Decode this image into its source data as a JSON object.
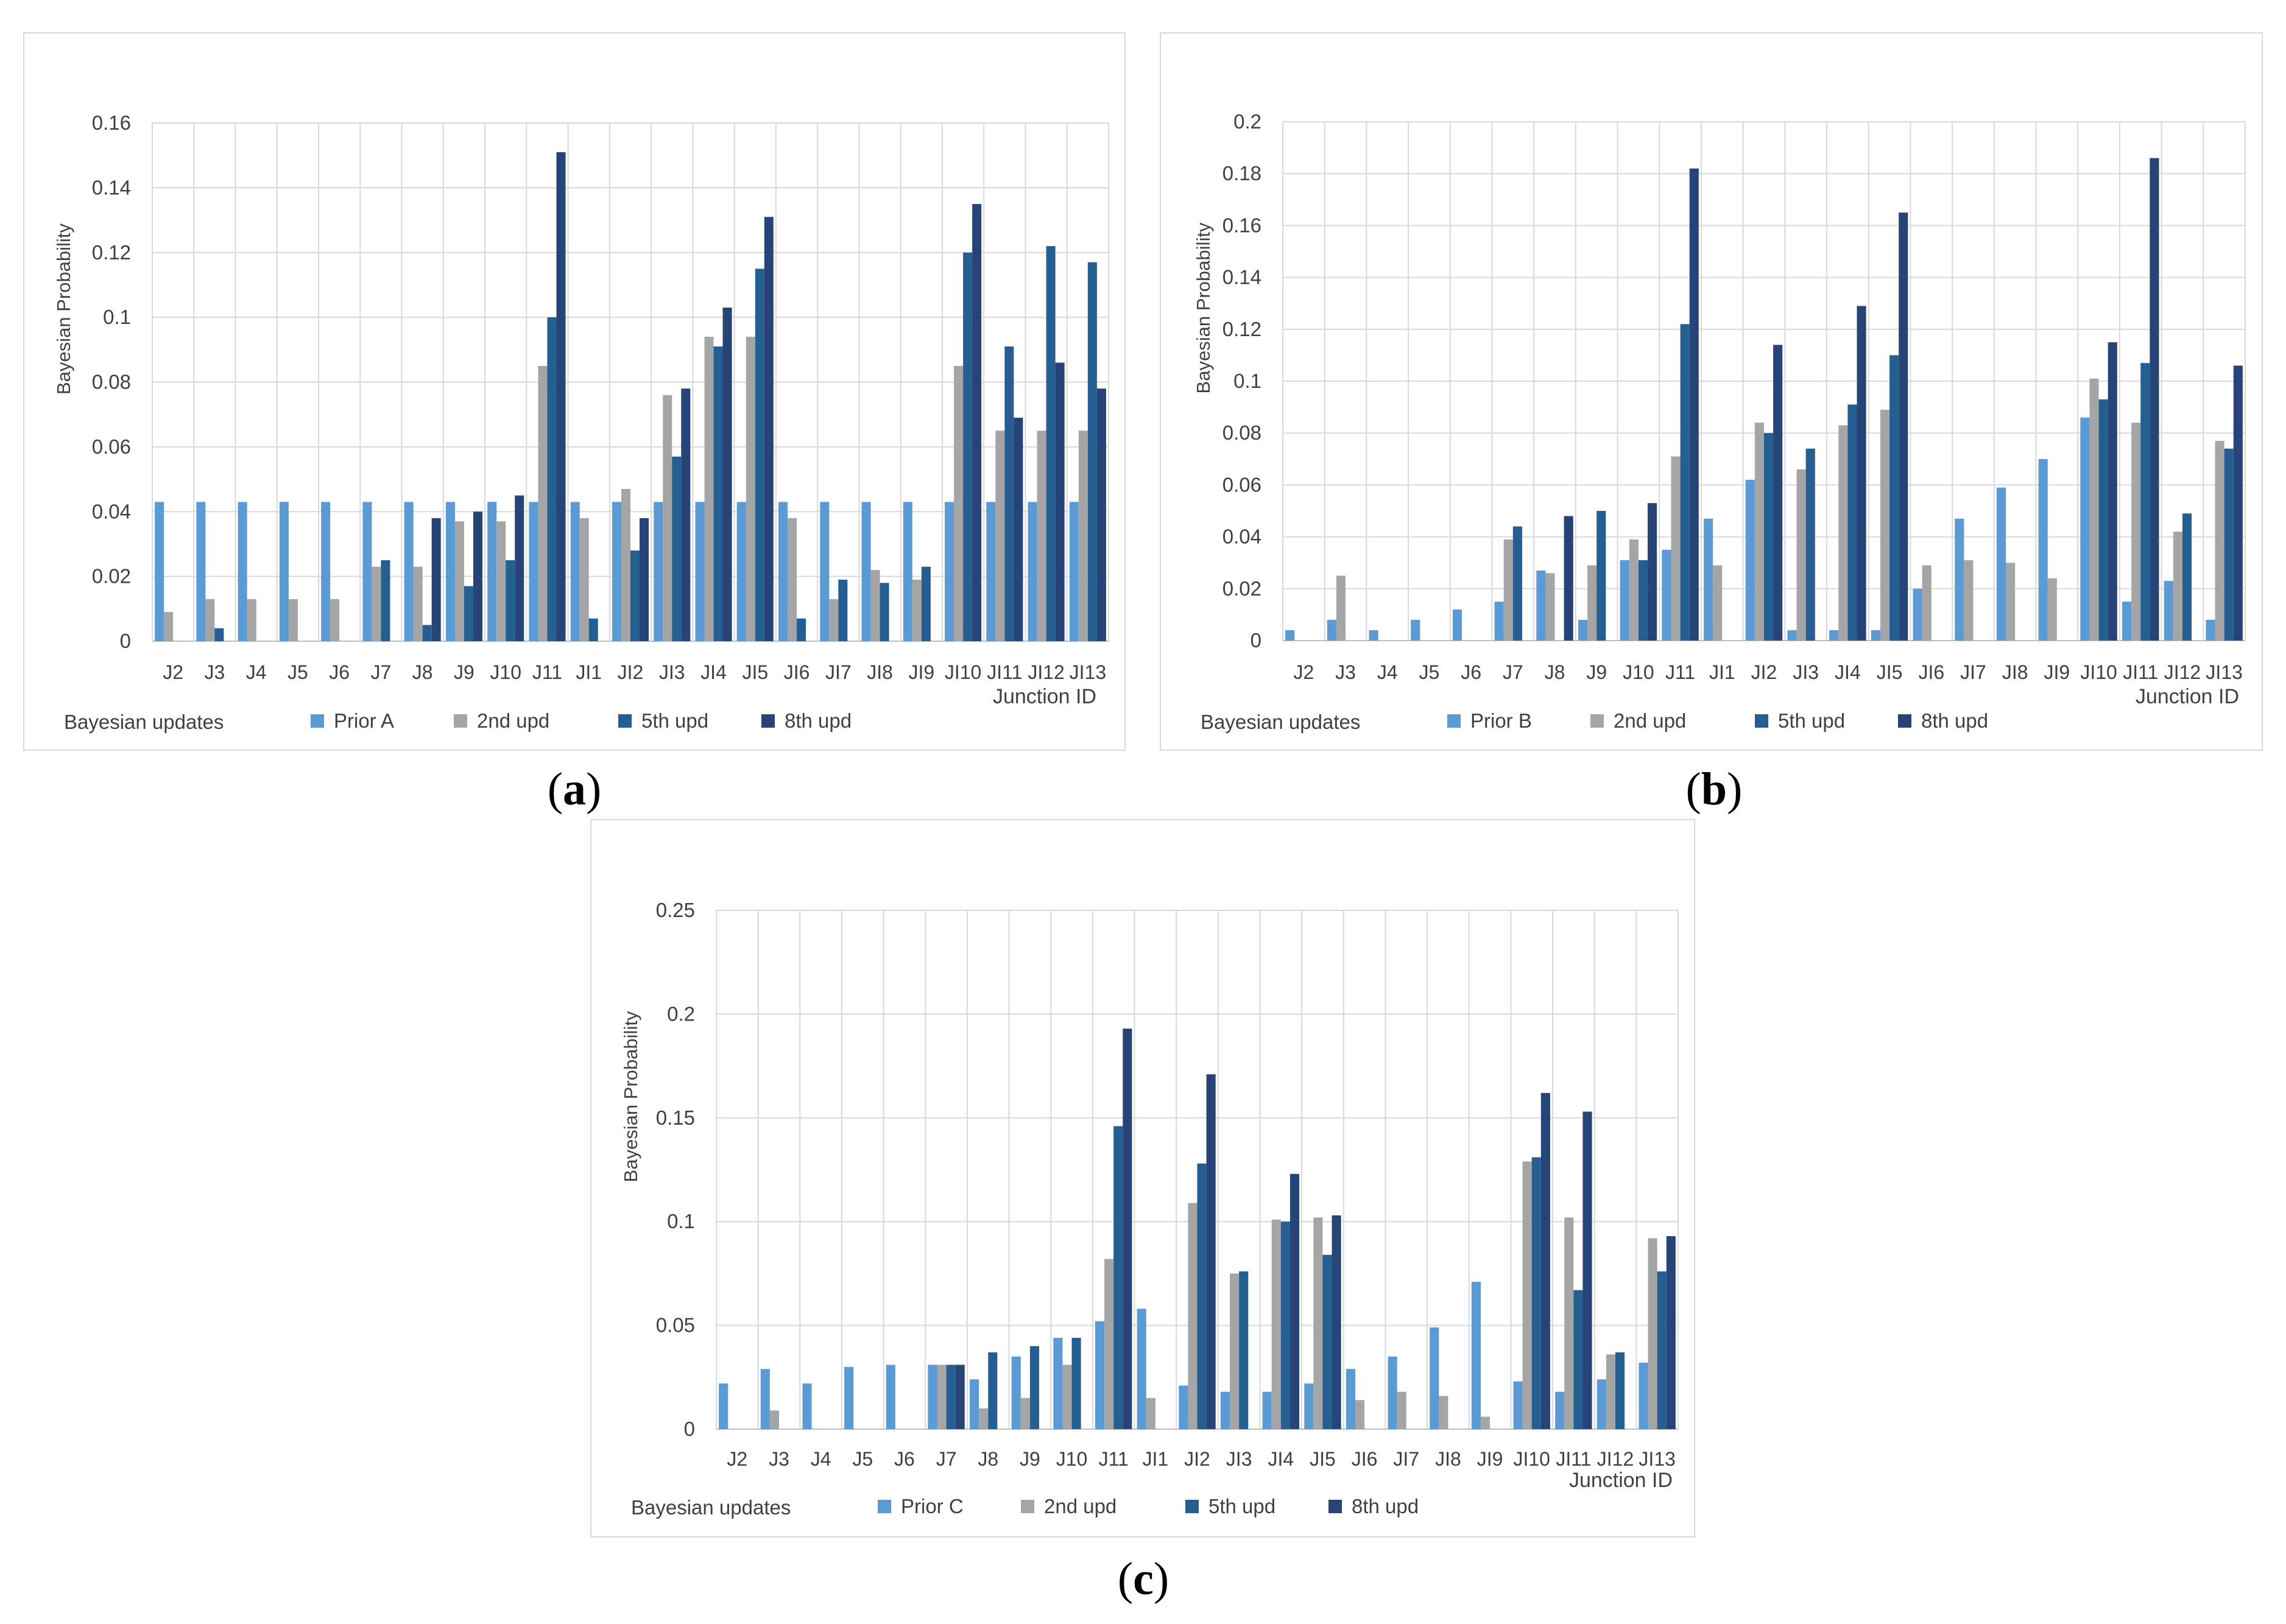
{
  "colors": {
    "prior": "#5b9bd5",
    "upd2": "#a5a5a5",
    "upd5": "#255e91",
    "upd8": "#264478",
    "grid": "#d9d9d9",
    "text": "#404040"
  },
  "chart_data": [
    {
      "id": "a",
      "type": "bar",
      "caption": "a",
      "ylabel": "Bayesian Probability",
      "xlabel": "Junction ID",
      "legend_title": "Bayesian updates",
      "ylim": [
        0,
        0.16
      ],
      "yticks": [
        0,
        0.02,
        0.04,
        0.06,
        0.08,
        0.1,
        0.12,
        0.14,
        0.16
      ],
      "ytick_labels": [
        "0",
        "0.02",
        "0.04",
        "0.06",
        "0.08",
        "0.1",
        "0.12",
        "0.14",
        "0.16"
      ],
      "categories": [
        "J2",
        "J3",
        "J4",
        "J5",
        "J6",
        "J7",
        "J8",
        "J9",
        "J10",
        "J11",
        "JI1",
        "JI2",
        "JI3",
        "JI4",
        "JI5",
        "JI6",
        "JI7",
        "JI8",
        "JI9",
        "JI10",
        "JI11",
        "JI12",
        "JI13"
      ],
      "series": [
        {
          "name": "Prior A",
          "values": [
            0.043,
            0.043,
            0.043,
            0.043,
            0.043,
            0.043,
            0.043,
            0.043,
            0.043,
            0.043,
            0.043,
            0.043,
            0.043,
            0.043,
            0.043,
            0.043,
            0.043,
            0.043,
            0.043,
            0.043,
            0.043,
            0.043,
            0.043
          ]
        },
        {
          "name": "2nd upd",
          "values": [
            0.009,
            0.013,
            0.013,
            0.013,
            0.013,
            0.023,
            0.023,
            0.037,
            0.037,
            0.085,
            0.038,
            0.047,
            0.076,
            0.094,
            0.094,
            0.038,
            0.013,
            0.022,
            0.019,
            0.085,
            0.065,
            0.065,
            0.065
          ]
        },
        {
          "name": "5th upd",
          "values": [
            0,
            0.004,
            0,
            0,
            0,
            0.025,
            0.005,
            0.017,
            0.025,
            0.1,
            0.007,
            0.028,
            0.057,
            0.091,
            0.115,
            0.007,
            0.019,
            0.018,
            0.023,
            0.12,
            0.091,
            0.122,
            0.117
          ]
        },
        {
          "name": "8th upd",
          "values": [
            0,
            0,
            0,
            0,
            0,
            0,
            0.038,
            0.04,
            0.045,
            0.151,
            0,
            0.038,
            0.078,
            0.103,
            0.131,
            0,
            0,
            0,
            0,
            0.135,
            0.069,
            0.086,
            0.078
          ]
        }
      ]
    },
    {
      "id": "b",
      "type": "bar",
      "caption": "b",
      "ylabel": "Bayesian Probability",
      "xlabel": "Junction ID",
      "legend_title": "Bayesian updates",
      "ylim": [
        0,
        0.2
      ],
      "yticks": [
        0,
        0.02,
        0.04,
        0.06,
        0.08,
        0.1,
        0.12,
        0.14,
        0.16,
        0.18,
        0.2
      ],
      "ytick_labels": [
        "0",
        "0.02",
        "0.04",
        "0.06",
        "0.08",
        "0.1",
        "0.12",
        "0.14",
        "0.16",
        "0.18",
        "0.2"
      ],
      "categories": [
        "J2",
        "J3",
        "J4",
        "J5",
        "J6",
        "J7",
        "J8",
        "J9",
        "J10",
        "J11",
        "JI1",
        "JI2",
        "JI3",
        "JI4",
        "JI5",
        "JI6",
        "JI7",
        "JI8",
        "JI9",
        "JI10",
        "JI11",
        "JI12",
        "JI13"
      ],
      "series": [
        {
          "name": "Prior B",
          "values": [
            0.004,
            0.008,
            0.004,
            0.008,
            0.012,
            0.015,
            0.027,
            0.008,
            0.031,
            0.035,
            0.047,
            0.062,
            0.004,
            0.004,
            0.004,
            0.02,
            0.047,
            0.059,
            0.07,
            0.086,
            0.015,
            0.023,
            0.008
          ]
        },
        {
          "name": "2nd upd",
          "values": [
            0,
            0.025,
            0,
            0,
            0,
            0.039,
            0.026,
            0.029,
            0.039,
            0.071,
            0.029,
            0.084,
            0.066,
            0.083,
            0.089,
            0.029,
            0.031,
            0.03,
            0.024,
            0.101,
            0.084,
            0.042,
            0.077
          ]
        },
        {
          "name": "5th upd",
          "values": [
            0,
            0,
            0,
            0,
            0,
            0.044,
            0,
            0.05,
            0.031,
            0.122,
            0,
            0.08,
            0.074,
            0.091,
            0.11,
            0,
            0,
            0,
            0,
            0.093,
            0.107,
            0.049,
            0.074
          ]
        },
        {
          "name": "8th upd",
          "values": [
            0,
            0,
            0,
            0,
            0,
            0,
            0.048,
            0,
            0.053,
            0.182,
            0,
            0.114,
            0,
            0.129,
            0.165,
            0,
            0,
            0,
            0,
            0.115,
            0.186,
            0,
            0.106
          ]
        }
      ]
    },
    {
      "id": "c",
      "type": "bar",
      "caption": "c",
      "ylabel": "Bayesian Probability",
      "xlabel": "Junction ID",
      "legend_title": "Bayesian updates",
      "ylim": [
        0,
        0.25
      ],
      "yticks": [
        0,
        0.05,
        0.1,
        0.15,
        0.2,
        0.25
      ],
      "ytick_labels": [
        "0",
        "0.05",
        "0.1",
        "0.15",
        "0.2",
        "0.25"
      ],
      "categories": [
        "J2",
        "J3",
        "J4",
        "J5",
        "J6",
        "J7",
        "J8",
        "J9",
        "J10",
        "J11",
        "JI1",
        "JI2",
        "JI3",
        "JI4",
        "JI5",
        "JI6",
        "JI7",
        "JI8",
        "JI9",
        "JI10",
        "JI11",
        "JI12",
        "JI13"
      ],
      "series": [
        {
          "name": "Prior C",
          "values": [
            0.022,
            0.029,
            0.022,
            0.03,
            0.031,
            0.031,
            0.024,
            0.035,
            0.044,
            0.052,
            0.058,
            0.021,
            0.018,
            0.018,
            0.022,
            0.029,
            0.035,
            0.049,
            0.071,
            0.023,
            0.018,
            0.024,
            0.032
          ]
        },
        {
          "name": "2nd upd",
          "values": [
            0,
            0.009,
            0,
            0,
            0,
            0.031,
            0.01,
            0.015,
            0.031,
            0.082,
            0.015,
            0.109,
            0.075,
            0.101,
            0.102,
            0.014,
            0.018,
            0.016,
            0.006,
            0.129,
            0.102,
            0.036,
            0.092
          ]
        },
        {
          "name": "5th upd",
          "values": [
            0,
            0,
            0,
            0,
            0,
            0.031,
            0.037,
            0.04,
            0.044,
            0.146,
            0,
            0.128,
            0.076,
            0.1,
            0.084,
            0,
            0,
            0,
            0,
            0.131,
            0.067,
            0.037,
            0.076
          ]
        },
        {
          "name": "8th upd",
          "values": [
            0,
            0,
            0,
            0,
            0,
            0.031,
            0,
            0,
            0,
            0.193,
            0,
            0.171,
            0,
            0.123,
            0.103,
            0,
            0,
            0,
            0,
            0.162,
            0.153,
            0,
            0.093
          ]
        }
      ]
    }
  ]
}
